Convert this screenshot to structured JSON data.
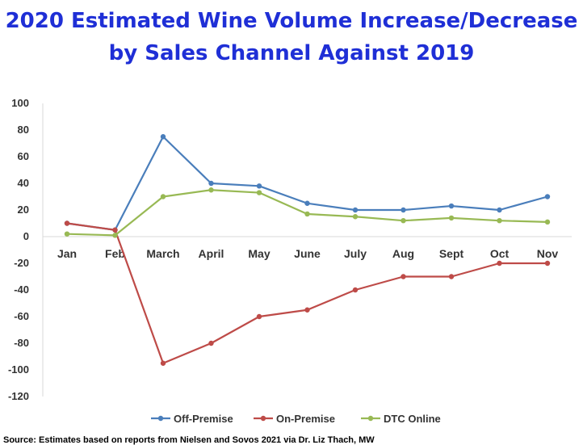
{
  "chart_data": {
    "type": "line",
    "title_lines": [
      "2020 Estimated Wine Volume Increase/Decrease",
      "by Sales Channel Against 2019"
    ],
    "categories": [
      "Jan",
      "Feb",
      "March",
      "April",
      "May",
      "June",
      "July",
      "Aug",
      "Sept",
      "Oct",
      "Nov"
    ],
    "ylim": [
      -120,
      100
    ],
    "yticks": [
      100,
      80,
      60,
      40,
      20,
      0,
      -20,
      -40,
      -60,
      -80,
      -100,
      -120
    ],
    "grid": false,
    "legend_position": "bottom",
    "series": [
      {
        "name": "Off-Premise",
        "color": "#4a7ebb",
        "values": [
          10,
          5,
          75,
          40,
          38,
          25,
          20,
          20,
          23,
          20,
          30
        ]
      },
      {
        "name": "On-Premise",
        "color": "#be4b48",
        "values": [
          10,
          5,
          -95,
          -80,
          -60,
          -55,
          -40,
          -30,
          -30,
          -20,
          -20
        ]
      },
      {
        "name": "DTC Online",
        "color": "#98b954",
        "values": [
          2,
          1,
          30,
          35,
          33,
          17,
          15,
          12,
          14,
          12,
          11
        ]
      }
    ]
  },
  "source_text": "Source:  Estimates based on reports from Nielsen and Sovos 2021 via Dr. Liz Thach, MW"
}
